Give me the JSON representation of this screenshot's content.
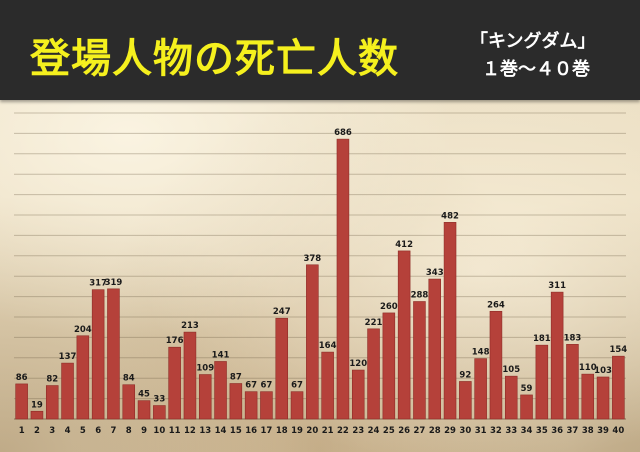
{
  "title": "登場人物の死亡人数",
  "subtitle_line1": "「キングダム」",
  "subtitle_line2": "１巻～４０巻",
  "colors": {
    "bar": "#b5413a",
    "bar_edge": "#8e2c27",
    "header": "#2b2b2b",
    "title": "#f5f01e"
  },
  "chart_data": {
    "type": "bar",
    "title": "登場人物の死亡人数",
    "subtitle": "「キングダム」 １巻～４０巻",
    "xlabel": "",
    "ylabel": "",
    "categories": [
      "1",
      "2",
      "3",
      "4",
      "5",
      "6",
      "7",
      "8",
      "9",
      "10",
      "11",
      "12",
      "13",
      "14",
      "15",
      "16",
      "17",
      "18",
      "19",
      "20",
      "21",
      "22",
      "23",
      "24",
      "25",
      "26",
      "27",
      "28",
      "29",
      "30",
      "31",
      "32",
      "33",
      "34",
      "35",
      "36",
      "37",
      "38",
      "39",
      "40"
    ],
    "values": [
      86,
      19,
      82,
      137,
      204,
      317,
      319,
      84,
      45,
      33,
      176,
      213,
      109,
      141,
      87,
      67,
      67,
      247,
      67,
      378,
      164,
      686,
      120,
      221,
      260,
      412,
      288,
      343,
      482,
      92,
      148,
      264,
      105,
      59,
      181,
      311,
      183,
      110,
      103,
      154
    ],
    "ylim": [
      0,
      750
    ],
    "grid": true,
    "data_labels": true
  }
}
